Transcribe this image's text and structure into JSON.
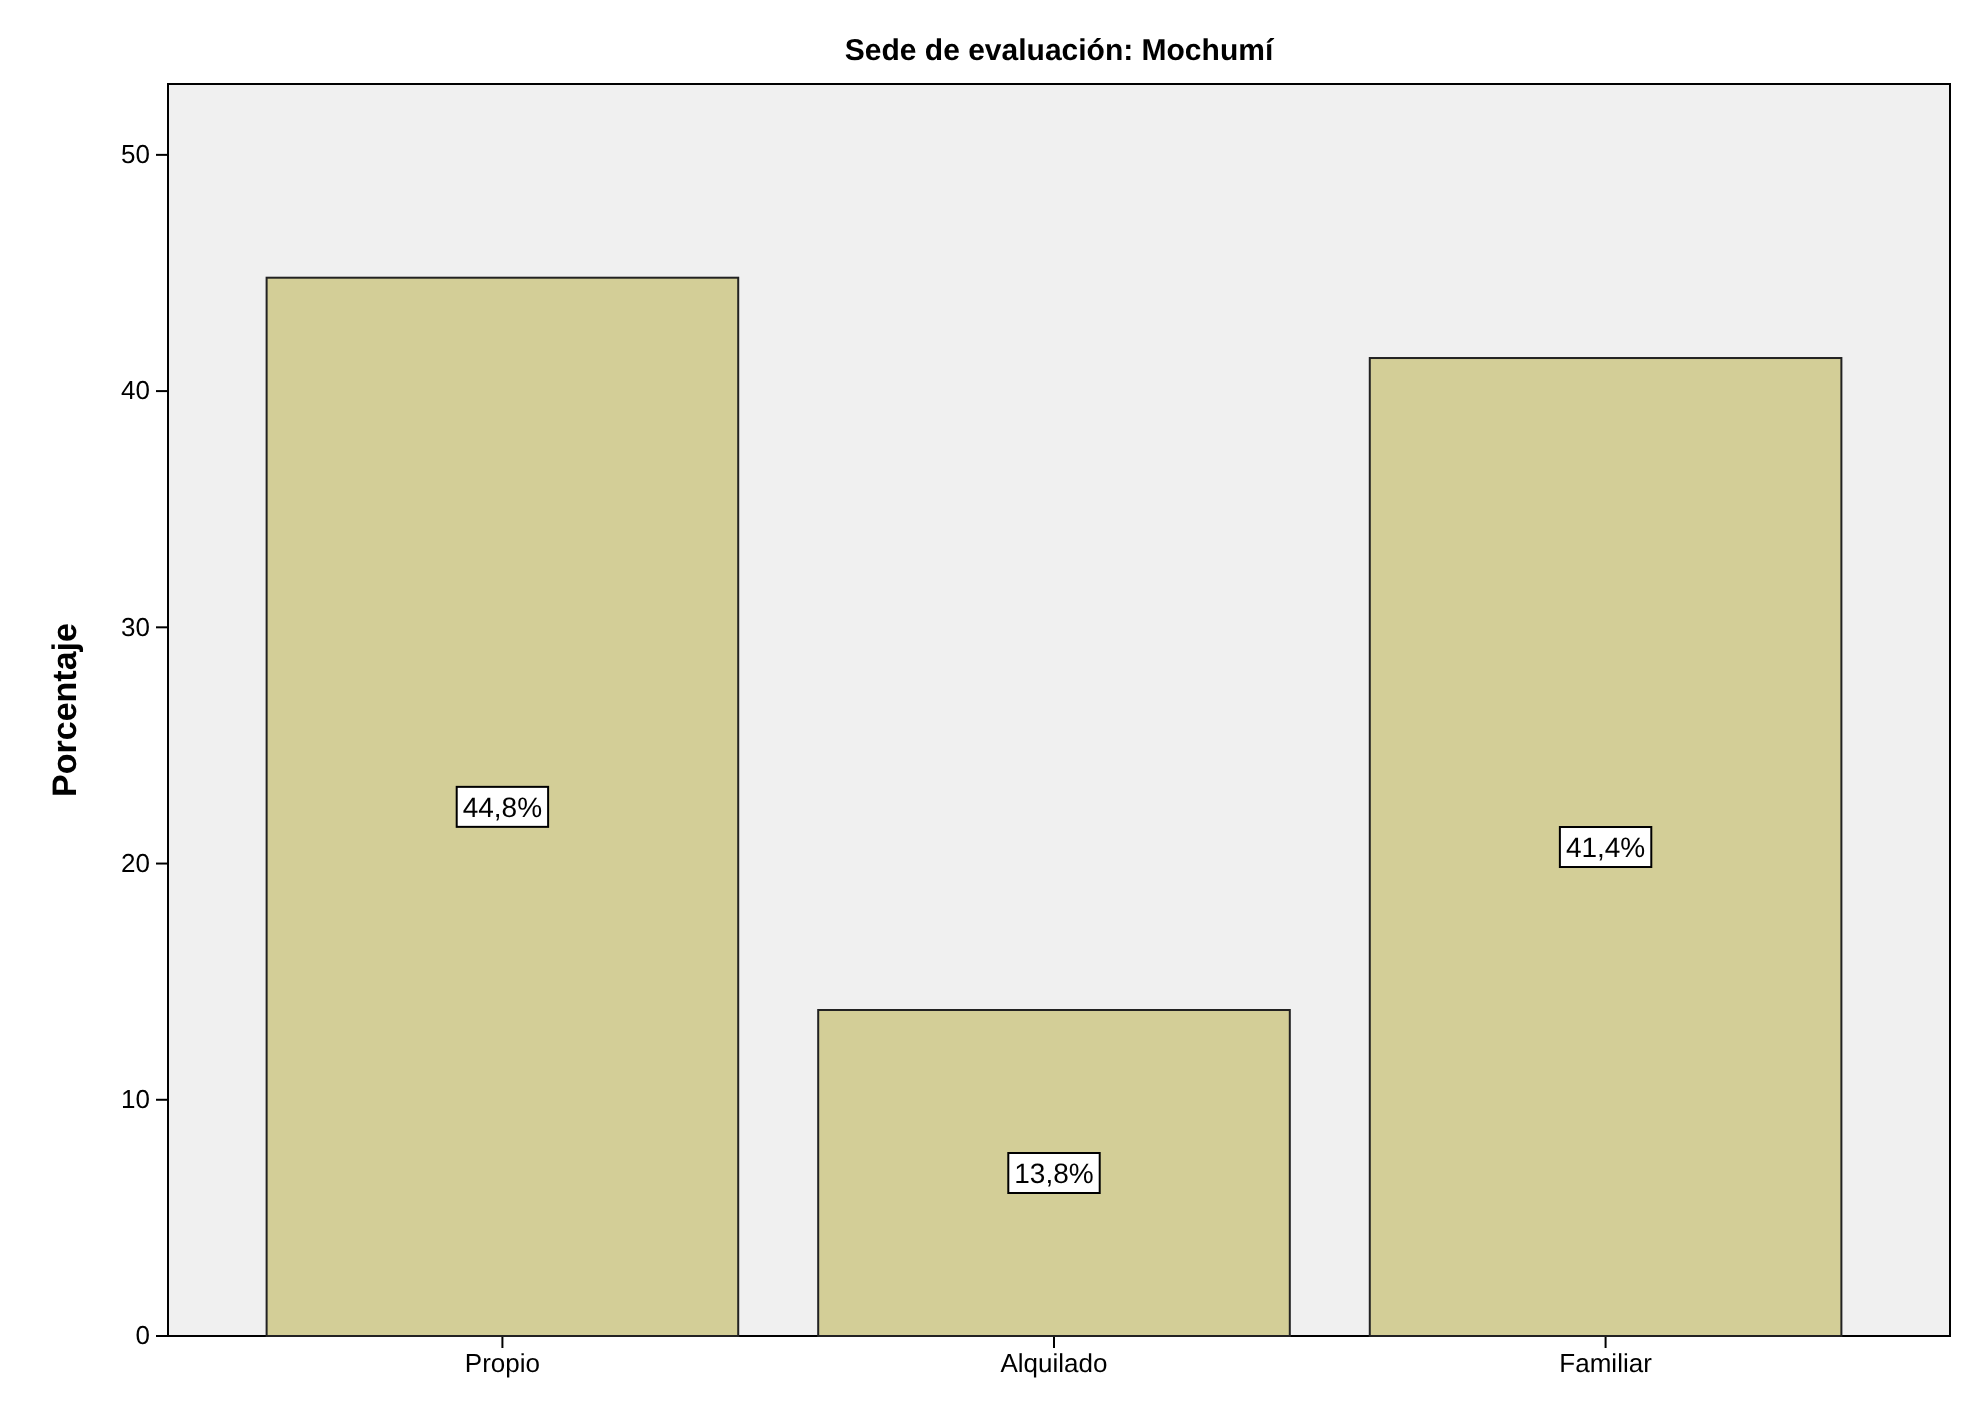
{
  "chart_data": {
    "type": "bar",
    "title": "Sede de evaluación: Mochumí",
    "ylabel": "Porcentaje",
    "categories": [
      "Propio",
      "Alquilado",
      "Familiar"
    ],
    "values": [
      44.8,
      13.8,
      41.4
    ],
    "value_labels": [
      "44,8%",
      "13,8%",
      "41,4%"
    ],
    "color": "#d3ce97",
    "ylim": [
      0,
      53
    ],
    "yticks": [
      0,
      10,
      20,
      30,
      40,
      50
    ],
    "grid": false
  }
}
